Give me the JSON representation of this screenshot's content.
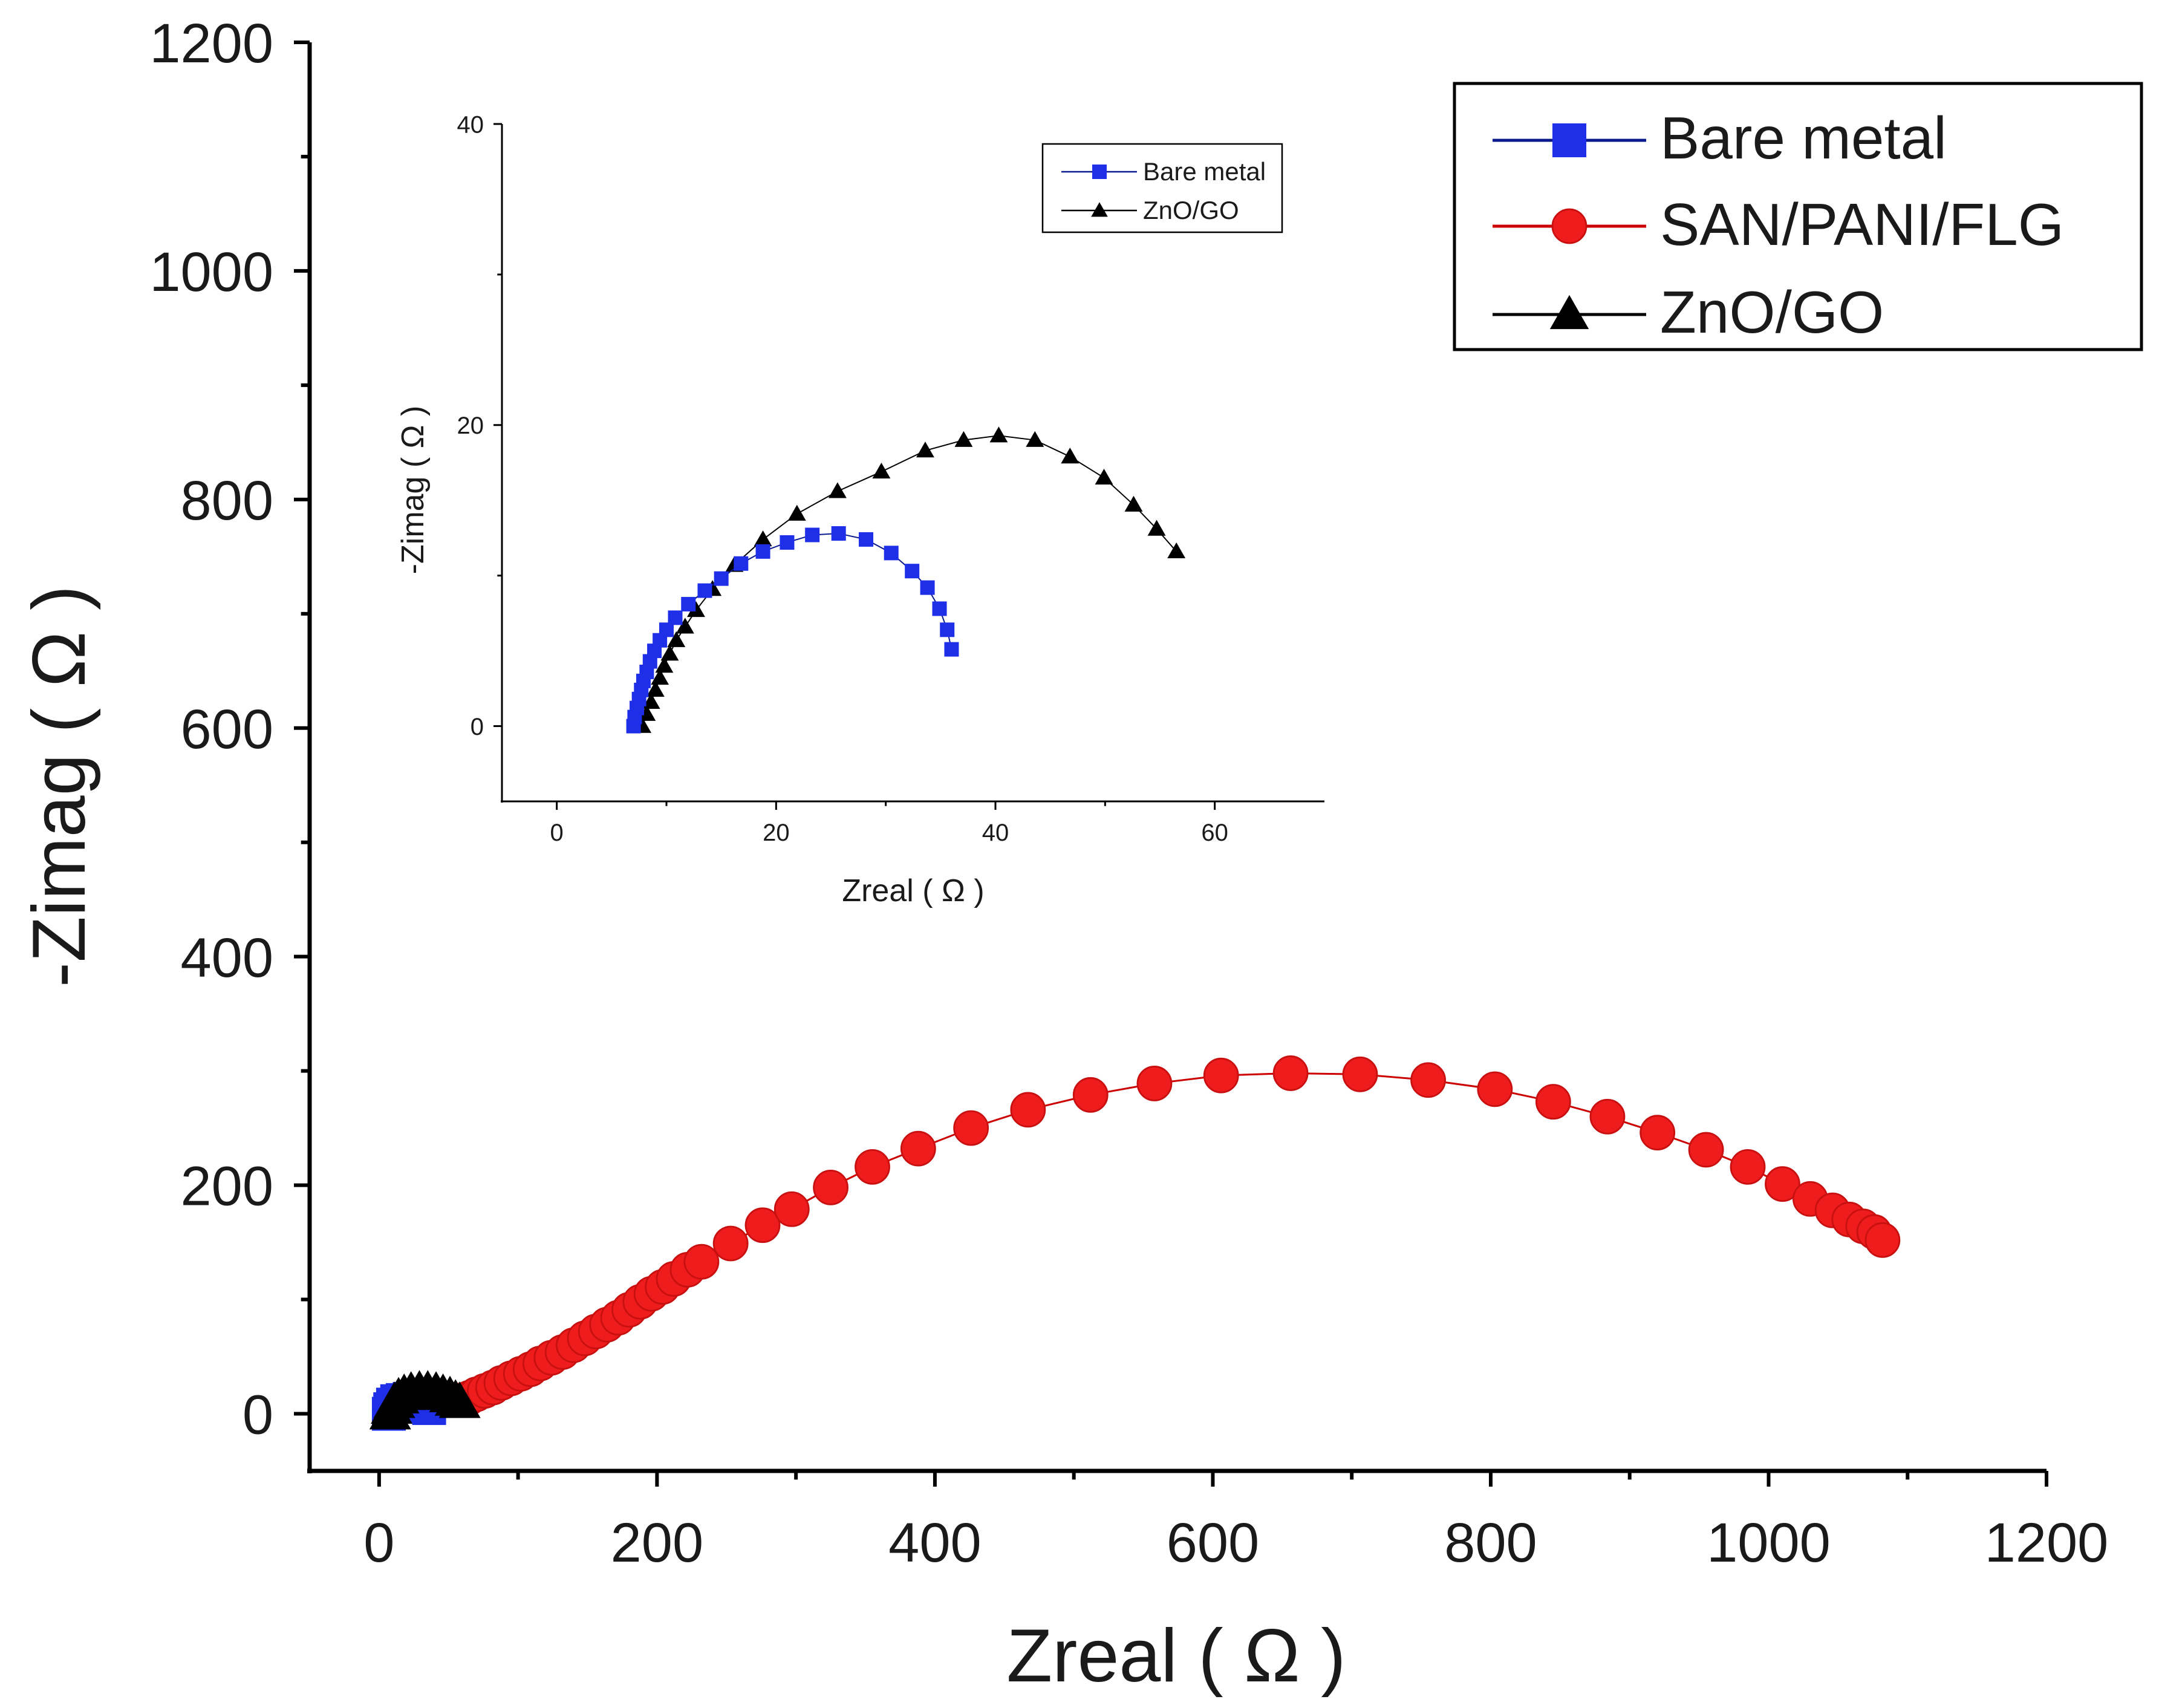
{
  "chart_data": [
    {
      "id": "main",
      "type": "scatter",
      "title": "",
      "xlabel": "Zreal ( Ω )",
      "ylabel": "-Zimag ( Ω )",
      "xlim": [
        -50,
        1200
      ],
      "ylim": [
        -50,
        1200
      ],
      "xticks": [
        0,
        200,
        400,
        600,
        800,
        1000,
        1200
      ],
      "yticks": [
        0,
        200,
        400,
        600,
        800,
        1000,
        1200
      ],
      "grid": false,
      "legend_position": "top-right",
      "series": [
        {
          "name": "Bare metal",
          "color": "#1f2fe8",
          "line_color": "#0a1a8c",
          "marker": "square",
          "x": [
            7,
            8,
            10,
            13,
            17,
            22,
            26,
            30,
            33,
            35,
            36
          ],
          "y": [
            0,
            4,
            8,
            11,
            12,
            13,
            12.5,
            11,
            9,
            7,
            5
          ]
        },
        {
          "name": "SAN/PANI/FLG",
          "color": "#ee1c1c",
          "line_color": "#cc0000",
          "marker": "circle",
          "x": [
            60,
            65,
            70,
            76,
            82,
            88,
            95,
            102,
            109,
            116,
            124,
            132,
            140,
            148,
            156,
            164,
            172,
            180,
            188,
            196,
            204,
            212,
            222,
            232,
            253,
            276,
            297,
            325,
            355,
            388,
            426,
            467,
            512,
            558,
            606,
            656,
            706,
            755,
            803,
            845,
            884,
            920,
            955,
            985,
            1010,
            1030,
            1046,
            1058,
            1068,
            1076,
            1082
          ],
          "y": [
            12,
            14,
            17,
            20,
            23,
            27,
            31,
            35,
            39,
            44,
            49,
            54,
            60,
            66,
            72,
            78,
            84,
            91,
            98,
            105,
            111,
            118,
            126,
            133,
            149,
            165,
            179,
            198,
            216,
            232,
            250,
            266,
            279,
            289,
            296,
            298,
            297,
            292,
            284,
            273,
            260,
            246,
            231,
            216,
            201,
            188,
            178,
            170,
            164,
            159,
            152
          ]
        },
        {
          "name": "ZnO/GO",
          "color": "#000000",
          "line_color": "#000000",
          "marker": "triangle",
          "x": [
            8,
            9,
            11,
            14,
            18,
            23,
            29,
            35,
            41,
            46,
            51,
            55,
            58
          ],
          "y": [
            0,
            5,
            10,
            14,
            17,
            19,
            20,
            20,
            19,
            17,
            15,
            12,
            10
          ]
        }
      ]
    },
    {
      "id": "inset",
      "type": "scatter",
      "title": "",
      "xlabel": "Zreal ( Ω )",
      "ylabel": "-Zimag ( Ω )",
      "xlim": [
        -5,
        70
      ],
      "ylim": [
        -5,
        40
      ],
      "xticks": [
        0,
        20,
        40,
        60
      ],
      "yticks": [
        0,
        20,
        40
      ],
      "grid": false,
      "legend_position": "top-right",
      "series": [
        {
          "name": "Bare metal",
          "color": "#1f2fe8",
          "line_color": "#0a1a8c",
          "marker": "square",
          "x": [
            7.0,
            7.1,
            7.3,
            7.5,
            7.7,
            7.9,
            8.2,
            8.5,
            8.9,
            9.4,
            10.0,
            10.8,
            12.0,
            13.5,
            15.0,
            16.8,
            18.8,
            21.0,
            23.3,
            25.7,
            28.2,
            30.5,
            32.4,
            33.8,
            34.9,
            35.6,
            36.0
          ],
          "y": [
            0.0,
            0.6,
            1.2,
            1.8,
            2.4,
            3.0,
            3.6,
            4.3,
            5.0,
            5.7,
            6.4,
            7.2,
            8.1,
            9.0,
            9.8,
            10.8,
            11.6,
            12.2,
            12.7,
            12.8,
            12.4,
            11.5,
            10.3,
            9.2,
            7.8,
            6.4,
            5.1
          ]
        },
        {
          "name": "ZnO/GO",
          "color": "#000000",
          "line_color": "#000000",
          "marker": "triangle",
          "x": [
            7.8,
            8.2,
            8.6,
            9.0,
            9.4,
            9.8,
            10.3,
            10.9,
            11.7,
            12.7,
            14.2,
            16.2,
            18.8,
            21.9,
            25.6,
            29.6,
            33.6,
            37.1,
            40.3,
            43.6,
            46.8,
            49.9,
            52.6,
            54.7,
            56.5
          ],
          "y": [
            0.0,
            0.8,
            1.6,
            2.4,
            3.2,
            4.0,
            4.8,
            5.7,
            6.6,
            7.7,
            9.1,
            10.7,
            12.4,
            14.1,
            15.6,
            16.9,
            18.3,
            19.0,
            19.3,
            19.0,
            17.9,
            16.5,
            14.7,
            13.1,
            11.6
          ]
        }
      ]
    }
  ]
}
